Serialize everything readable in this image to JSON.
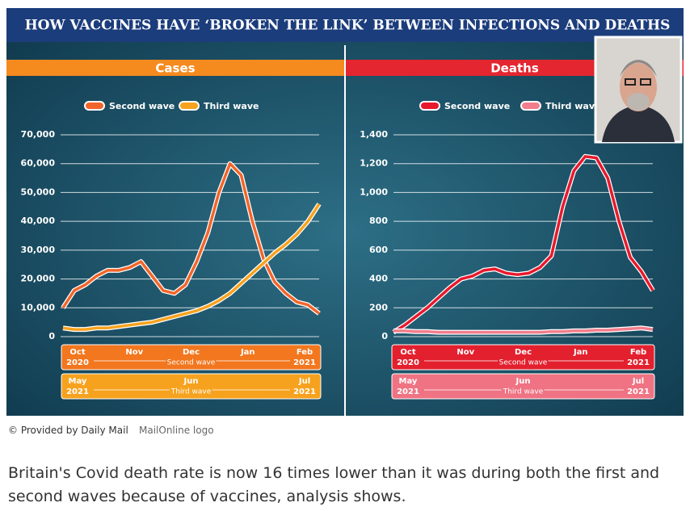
{
  "title": "HOW VACCINES HAVE ‘BROKEN THE LINK’ BETWEEN INFECTIONS AND DEATHS",
  "chart_data": [
    {
      "type": "line",
      "title": "Cases",
      "ylim": [
        0,
        70000
      ],
      "yticks": [
        0,
        {
          "value": 10000,
          "label": "10,000"
        },
        {
          "value": 20000,
          "label": "20,000"
        },
        {
          "value": 30000,
          "label": "30,000"
        },
        {
          "value": 40000,
          "label": "40,000"
        },
        {
          "value": 50000,
          "label": "50,000"
        },
        {
          "value": 60000,
          "label": "60,000"
        },
        {
          "value": 70000,
          "label": "70,000"
        }
      ],
      "grid": true,
      "series": [
        {
          "name": "Second wave",
          "color": "#f2652a",
          "values": [
            10000,
            16000,
            18000,
            21000,
            23000,
            23000,
            24000,
            26000,
            21000,
            16000,
            15000,
            18000,
            26000,
            36000,
            50000,
            60000,
            56000,
            40000,
            27000,
            19000,
            15000,
            12000,
            11000,
            8000
          ]
        },
        {
          "name": "Third wave",
          "color": "#f7a21e",
          "values": [
            3000,
            2500,
            2500,
            3000,
            3000,
            3500,
            4000,
            4500,
            5000,
            6000,
            7000,
            8000,
            9000,
            10500,
            12500,
            15000,
            18500,
            22000,
            25500,
            29000,
            32000,
            35500,
            40000,
            46000
          ]
        }
      ],
      "x_axes": [
        {
          "label": "Second wave",
          "color": "#f2771e",
          "months": [
            "Oct",
            "Nov",
            "Dec",
            "Jan",
            "Feb"
          ],
          "first_year": "2020",
          "last_year": "2021"
        },
        {
          "label": "Third wave",
          "color": "#f7a21e",
          "months": [
            "May",
            "Jun",
            "Jul"
          ],
          "first_year": "2021",
          "last_year": "2021"
        }
      ]
    },
    {
      "type": "line",
      "title": "Deaths",
      "ylim": [
        0,
        1400
      ],
      "yticks": [
        0,
        200,
        400,
        600,
        800,
        {
          "value": 1000,
          "label": "1,000"
        },
        {
          "value": 1200,
          "label": "1,200"
        },
        {
          "value": 1400,
          "label": "1,400"
        }
      ],
      "grid": true,
      "series": [
        {
          "name": "Second wave",
          "color": "#e8192c",
          "values": [
            30,
            80,
            140,
            200,
            270,
            340,
            400,
            420,
            460,
            470,
            440,
            430,
            440,
            480,
            560,
            900,
            1150,
            1250,
            1240,
            1100,
            800,
            550,
            450,
            320
          ]
        },
        {
          "name": "Third wave",
          "color": "#f27d8c",
          "values": [
            40,
            40,
            35,
            35,
            30,
            30,
            30,
            30,
            30,
            30,
            30,
            30,
            30,
            30,
            35,
            35,
            40,
            40,
            45,
            45,
            50,
            55,
            60,
            50
          ]
        }
      ],
      "x_axes": [
        {
          "label": "Second wave",
          "color": "#e3202e",
          "months": [
            "Oct",
            "Nov",
            "Dec",
            "Jan",
            "Feb"
          ],
          "first_year": "2020",
          "last_year": "2021"
        },
        {
          "label": "Third wave",
          "color": "#ef7383",
          "months": [
            "May",
            "Jun",
            "Jul"
          ],
          "first_year": "2021",
          "last_year": "2021"
        }
      ]
    }
  ],
  "credit": "© Provided by Daily Mail",
  "logo_text": "MailOnline logo",
  "body": "Britain's Covid death rate is now 16 times lower than it was during both the first and second waves because of vaccines, analysis shows."
}
